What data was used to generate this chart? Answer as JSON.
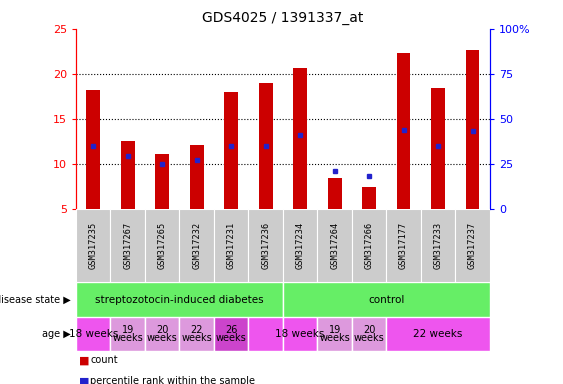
{
  "title": "GDS4025 / 1391337_at",
  "samples": [
    "GSM317235",
    "GSM317267",
    "GSM317265",
    "GSM317232",
    "GSM317231",
    "GSM317236",
    "GSM317234",
    "GSM317264",
    "GSM317266",
    "GSM317177",
    "GSM317233",
    "GSM317237"
  ],
  "count_values": [
    18.2,
    12.6,
    11.1,
    12.1,
    18.0,
    19.0,
    20.7,
    8.5,
    7.5,
    22.3,
    18.4,
    22.7
  ],
  "percentile_values": [
    12.0,
    10.9,
    10.0,
    10.5,
    12.0,
    12.0,
    13.2,
    9.2,
    8.7,
    13.8,
    12.0,
    13.7
  ],
  "ymin": 5,
  "ymax": 25,
  "yticks": [
    5,
    10,
    15,
    20,
    25
  ],
  "right_yticks": [
    0,
    25,
    50,
    75,
    100
  ],
  "right_yticklabels": [
    "0",
    "25",
    "50",
    "75",
    "100%"
  ],
  "bar_color": "#cc0000",
  "blue_color": "#2222cc",
  "sample_bg_color": "#cccccc",
  "bar_width": 0.4,
  "disease_groups": [
    {
      "label": "streptozotocin-induced diabetes",
      "start": 0,
      "end": 6,
      "color": "#66ee66"
    },
    {
      "label": "control",
      "start": 6,
      "end": 12,
      "color": "#66ee66"
    }
  ],
  "age_group_data": [
    {
      "label": "18 weeks",
      "start": 0,
      "end": 1,
      "color": "#ee55ee",
      "two_line": false
    },
    {
      "label": "19\nweeks",
      "start": 1,
      "end": 2,
      "color": "#dd99dd",
      "two_line": true
    },
    {
      "label": "20\nweeks",
      "start": 2,
      "end": 3,
      "color": "#dd99dd",
      "two_line": true
    },
    {
      "label": "22\nweeks",
      "start": 3,
      "end": 4,
      "color": "#dd99dd",
      "two_line": true
    },
    {
      "label": "26\nweeks",
      "start": 4,
      "end": 5,
      "color": "#cc44cc",
      "two_line": true
    },
    {
      "label": "",
      "start": 5,
      "end": 6,
      "color": "#ee55ee",
      "two_line": false
    },
    {
      "label": "18 weeks",
      "start": 6,
      "end": 7,
      "color": "#ee55ee",
      "two_line": false
    },
    {
      "label": "19\nweeks",
      "start": 7,
      "end": 8,
      "color": "#dd99dd",
      "two_line": true
    },
    {
      "label": "20\nweeks",
      "start": 8,
      "end": 9,
      "color": "#dd99dd",
      "two_line": true
    },
    {
      "label": "22 weeks",
      "start": 9,
      "end": 12,
      "color": "#ee55ee",
      "two_line": false
    }
  ]
}
